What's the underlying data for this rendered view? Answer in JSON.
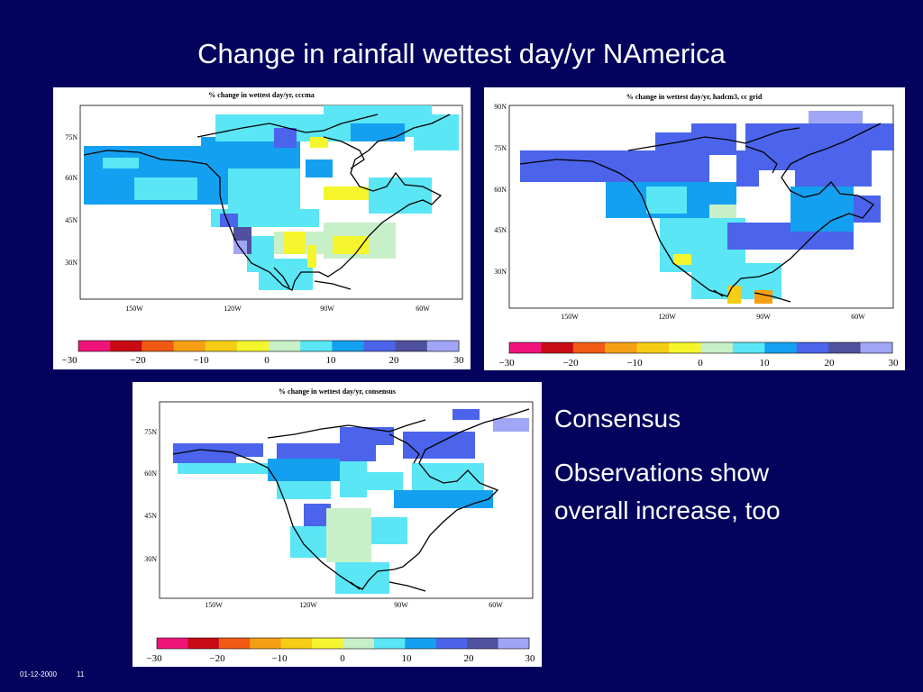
{
  "slide": {
    "title": "Change in rainfall wettest day/yr  NAmerica",
    "side_heading": "Consensus",
    "side_text_line1": "Observations show",
    "side_text_line2": "overall increase, too",
    "footer_date": "01-12-2000",
    "footer_page": "11"
  },
  "colorbar": {
    "colors": [
      "#f0147a",
      "#c80a14",
      "#f05a14",
      "#f5a014",
      "#f5cd14",
      "#f5f52d",
      "#c8f0c8",
      "#5ae6f5",
      "#14a0f0",
      "#4b64eb",
      "#5050a0",
      "#a0a5f5"
    ],
    "labels": [
      "−30",
      "−20",
      "−10",
      "0",
      "10",
      "20",
      "30"
    ]
  },
  "maps": [
    {
      "caption": "% change in wettest day/yr, cccma",
      "lat_labels": [
        "75N",
        "60N",
        "45N",
        "30N"
      ],
      "lon_labels": [
        "150W",
        "120W",
        "90W",
        "60W"
      ]
    },
    {
      "caption": "% change in wettest day/yr, hadcm3, cc grid",
      "lat_labels": [
        "90N",
        "75N",
        "60N",
        "45N",
        "30N"
      ],
      "lon_labels": [
        "150W",
        "120W",
        "90W",
        "60W"
      ]
    },
    {
      "caption": "% change in wettest day/yr, consensus",
      "lat_labels": [
        "75N",
        "60N",
        "45N",
        "30N"
      ],
      "lon_labels": [
        "150W",
        "120W",
        "90W",
        "60W"
      ]
    }
  ]
}
